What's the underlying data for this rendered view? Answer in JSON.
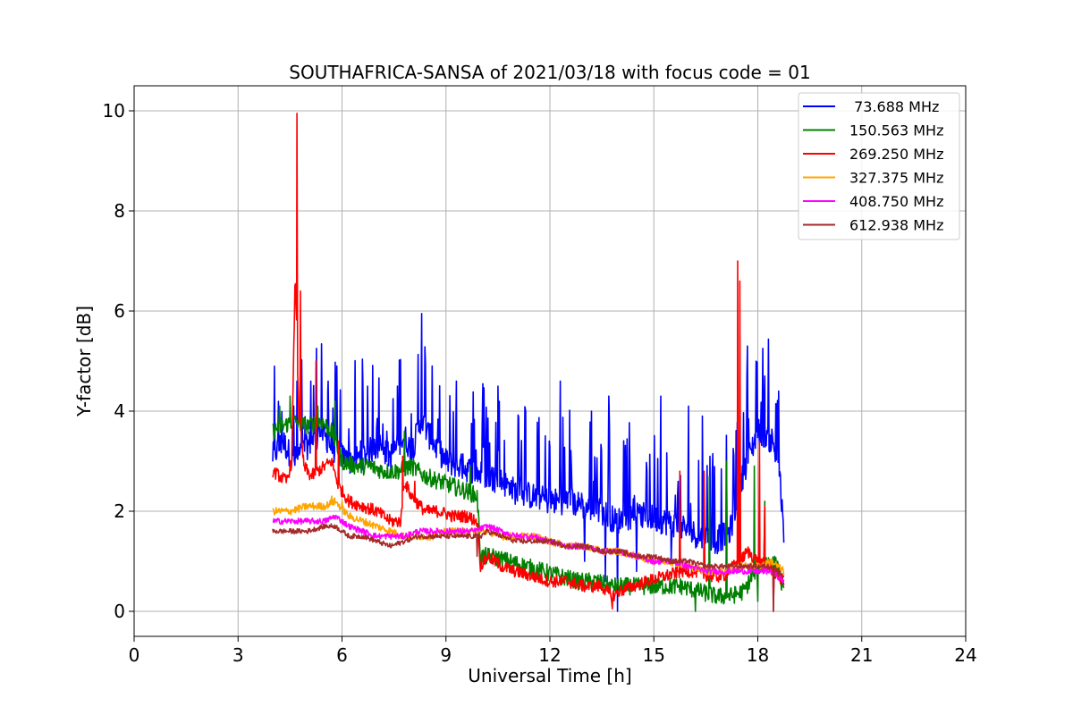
{
  "chart_data": {
    "type": "line",
    "title": "SOUTHAFRICA-SANSA of 2021/03/18 with focus code = 01",
    "xlabel": "Universal Time [h]",
    "ylabel": "Y-factor [dB]",
    "xlim": [
      0,
      24
    ],
    "ylim": [
      -0.5,
      10.5
    ],
    "xticks": [
      0,
      3,
      6,
      9,
      12,
      15,
      18,
      21,
      24
    ],
    "yticks": [
      0,
      2,
      4,
      6,
      8,
      10
    ],
    "grid": true,
    "legend_position": "top-right",
    "series": [
      {
        "name": " 73.688 MHz",
        "color": "#0000ff",
        "x": [
          4.0,
          4.3,
          4.6,
          5.0,
          5.4,
          5.8,
          6.2,
          6.6,
          7.0,
          7.4,
          7.8,
          8.0,
          8.3,
          8.6,
          9.0,
          9.4,
          9.8,
          10.2,
          10.6,
          11.0,
          11.5,
          12.0,
          12.5,
          13.0,
          13.5,
          13.9,
          14.3,
          14.8,
          15.3,
          15.8,
          16.3,
          16.8,
          17.2,
          17.6,
          18.0,
          18.3,
          18.6,
          18.75
        ],
        "y": [
          3.1,
          3.4,
          3.0,
          3.3,
          3.6,
          3.2,
          3.0,
          3.1,
          3.3,
          3.1,
          3.5,
          3.2,
          3.8,
          3.4,
          3.0,
          2.9,
          2.8,
          2.7,
          2.6,
          2.4,
          2.3,
          2.2,
          2.2,
          2.1,
          2.0,
          1.8,
          1.9,
          1.9,
          1.8,
          1.7,
          1.5,
          1.4,
          1.6,
          2.8,
          3.6,
          3.5,
          3.0,
          1.5
        ],
        "peaks": [
          [
            4.7,
            4.6
          ],
          [
            5.1,
            4.6
          ],
          [
            5.6,
            4.6
          ],
          [
            5.85,
            4.9
          ],
          [
            6.6,
            4.6
          ],
          [
            7.6,
            4.5
          ],
          [
            8.3,
            5.95
          ],
          [
            8.6,
            4.9
          ],
          [
            9.3,
            4.6
          ],
          [
            10.5,
            4.5
          ],
          [
            11.3,
            4.0
          ],
          [
            12.3,
            4.6
          ],
          [
            13.2,
            4.0
          ],
          [
            13.7,
            4.3
          ],
          [
            14.5,
            4.6
          ],
          [
            15.2,
            4.3
          ],
          [
            16.0,
            4.1
          ],
          [
            16.4,
            3.9
          ],
          [
            17.7,
            5.3
          ],
          [
            17.95,
            5.0
          ],
          [
            18.2,
            4.7
          ],
          [
            18.6,
            4.4
          ]
        ],
        "dips": [
          [
            13.0,
            1.0
          ],
          [
            13.6,
            0.6
          ],
          [
            13.95,
            0.0
          ],
          [
            14.5,
            0.8
          ],
          [
            15.5,
            1.0
          ]
        ]
      },
      {
        "name": "150.563 MHz",
        "color": "#008000",
        "x": [
          4.0,
          4.3,
          4.6,
          5.0,
          5.4,
          5.7,
          6.0,
          6.4,
          6.8,
          7.2,
          7.6,
          8.0,
          8.4,
          8.8,
          9.2,
          9.6,
          9.9,
          10.0,
          10.3,
          10.8,
          11.3,
          11.8,
          12.3,
          12.8,
          13.3,
          13.8,
          14.3,
          14.8,
          15.3,
          15.8,
          16.3,
          16.8,
          17.2,
          17.6,
          18.0,
          18.3,
          18.6,
          18.75
        ],
        "y": [
          3.6,
          3.7,
          3.8,
          3.7,
          3.8,
          3.6,
          3.0,
          2.9,
          2.9,
          2.8,
          2.8,
          2.9,
          2.7,
          2.6,
          2.5,
          2.4,
          2.3,
          1.1,
          1.1,
          1.0,
          0.9,
          0.8,
          0.7,
          0.6,
          0.6,
          0.5,
          0.5,
          0.5,
          0.5,
          0.5,
          0.4,
          0.3,
          0.3,
          0.4,
          0.9,
          1.0,
          0.9,
          0.3
        ],
        "peaks": [
          [
            4.2,
            4.1
          ],
          [
            4.5,
            4.3
          ],
          [
            5.3,
            4.1
          ],
          [
            5.8,
            4.2
          ],
          [
            7.8,
            3.6
          ],
          [
            9.7,
            2.9
          ],
          [
            16.6,
            2.7
          ],
          [
            17.1,
            3.0
          ],
          [
            17.9,
            2.9
          ],
          [
            18.2,
            2.2
          ]
        ],
        "dips": [
          [
            16.2,
            0.0
          ],
          [
            18.0,
            0.2
          ]
        ]
      },
      {
        "name": "269.250 MHz",
        "color": "#ff0000",
        "x": [
          4.0,
          4.2,
          4.4,
          4.55,
          4.65,
          4.75,
          4.9,
          5.1,
          5.3,
          5.5,
          5.7,
          5.9,
          6.2,
          6.6,
          7.0,
          7.4,
          7.7,
          7.8,
          8.0,
          8.4,
          8.8,
          9.2,
          9.6,
          9.9,
          10.0,
          10.2,
          10.6,
          11.0,
          11.5,
          12.0,
          12.5,
          13.0,
          13.5,
          13.8,
          14.0,
          14.4,
          14.8,
          15.3,
          15.8,
          16.2,
          16.6,
          17.0,
          17.3,
          17.5,
          17.7,
          18.0,
          18.3,
          18.6,
          18.75
        ],
        "y": [
          2.8,
          2.7,
          2.6,
          3.0,
          6.8,
          4.0,
          2.9,
          2.7,
          2.8,
          2.9,
          3.0,
          2.5,
          2.2,
          2.1,
          2.0,
          1.8,
          1.8,
          2.6,
          2.3,
          2.0,
          2.0,
          1.9,
          1.9,
          1.8,
          0.9,
          1.1,
          0.9,
          0.8,
          0.7,
          0.6,
          0.6,
          0.5,
          0.5,
          0.3,
          0.4,
          0.5,
          0.6,
          0.7,
          0.8,
          0.8,
          0.7,
          0.7,
          0.9,
          1.0,
          1.2,
          1.0,
          0.9,
          0.7,
          0.6
        ],
        "peaks": [
          [
            4.7,
            9.95
          ],
          [
            4.8,
            6.4
          ],
          [
            5.25,
            5.0
          ],
          [
            5.9,
            3.4
          ],
          [
            7.75,
            3.1
          ],
          [
            8.1,
            2.6
          ],
          [
            15.75,
            2.8
          ],
          [
            16.45,
            2.8
          ],
          [
            17.42,
            7.0
          ],
          [
            17.48,
            6.6
          ],
          [
            18.05,
            3.4
          ],
          [
            18.2,
            2.1
          ]
        ],
        "dips": [
          [
            13.8,
            0.05
          ],
          [
            18.45,
            0.0
          ]
        ]
      },
      {
        "name": "327.375 MHz",
        "color": "#ffa500",
        "x": [
          4.0,
          4.5,
          5.0,
          5.5,
          5.8,
          6.2,
          6.6,
          7.0,
          7.4,
          7.8,
          8.2,
          8.6,
          9.0,
          9.4,
          9.8,
          10.2,
          10.6,
          11.0,
          11.5,
          12.0,
          12.5,
          13.0,
          13.5,
          14.0,
          14.5,
          15.0,
          15.5,
          16.0,
          16.5,
          17.0,
          17.5,
          18.0,
          18.4,
          18.75
        ],
        "y": [
          2.0,
          2.0,
          2.1,
          2.1,
          2.2,
          1.9,
          1.8,
          1.7,
          1.6,
          1.5,
          1.5,
          1.5,
          1.6,
          1.6,
          1.6,
          1.6,
          1.5,
          1.5,
          1.5,
          1.4,
          1.3,
          1.3,
          1.2,
          1.2,
          1.1,
          1.0,
          1.0,
          0.9,
          0.8,
          0.8,
          0.9,
          0.9,
          1.0,
          0.8
        ],
        "peaks": [
          [
            5.7,
            2.3
          ],
          [
            6.0,
            2.2
          ]
        ],
        "dips": []
      },
      {
        "name": "408.750 MHz",
        "color": "#ff00ff",
        "x": [
          4.0,
          4.5,
          5.0,
          5.5,
          5.8,
          6.2,
          6.6,
          7.0,
          7.4,
          7.8,
          8.2,
          8.6,
          9.0,
          9.4,
          9.8,
          10.2,
          10.6,
          11.0,
          11.5,
          12.0,
          12.5,
          13.0,
          13.5,
          14.0,
          14.5,
          15.0,
          15.5,
          16.0,
          16.5,
          17.0,
          17.5,
          18.0,
          18.4,
          18.75
        ],
        "y": [
          1.8,
          1.8,
          1.8,
          1.8,
          1.9,
          1.7,
          1.6,
          1.5,
          1.5,
          1.5,
          1.6,
          1.6,
          1.6,
          1.6,
          1.6,
          1.7,
          1.6,
          1.5,
          1.5,
          1.4,
          1.3,
          1.3,
          1.2,
          1.2,
          1.1,
          1.0,
          1.0,
          0.9,
          0.8,
          0.8,
          0.8,
          0.8,
          0.8,
          0.6
        ],
        "peaks": [],
        "dips": []
      },
      {
        "name": "612.938 MHz",
        "color": "#a52a2a",
        "x": [
          4.0,
          4.5,
          5.0,
          5.5,
          5.8,
          6.2,
          6.6,
          7.0,
          7.4,
          7.8,
          8.2,
          8.6,
          9.0,
          9.4,
          9.8,
          10.0,
          10.2,
          10.6,
          11.0,
          11.5,
          12.0,
          12.5,
          13.0,
          13.5,
          14.0,
          14.5,
          15.0,
          15.5,
          16.0,
          16.5,
          17.0,
          17.5,
          18.0,
          18.4,
          18.75
        ],
        "y": [
          1.6,
          1.6,
          1.6,
          1.7,
          1.7,
          1.5,
          1.5,
          1.4,
          1.3,
          1.4,
          1.5,
          1.5,
          1.5,
          1.5,
          1.5,
          1.5,
          1.6,
          1.5,
          1.4,
          1.4,
          1.4,
          1.3,
          1.3,
          1.2,
          1.2,
          1.1,
          1.1,
          1.0,
          1.0,
          0.9,
          0.9,
          0.9,
          0.9,
          0.9,
          0.7
        ],
        "peaks": [],
        "dips": [
          [
            9.9,
            1.1
          ],
          [
            18.45,
            0.0
          ]
        ]
      }
    ]
  }
}
